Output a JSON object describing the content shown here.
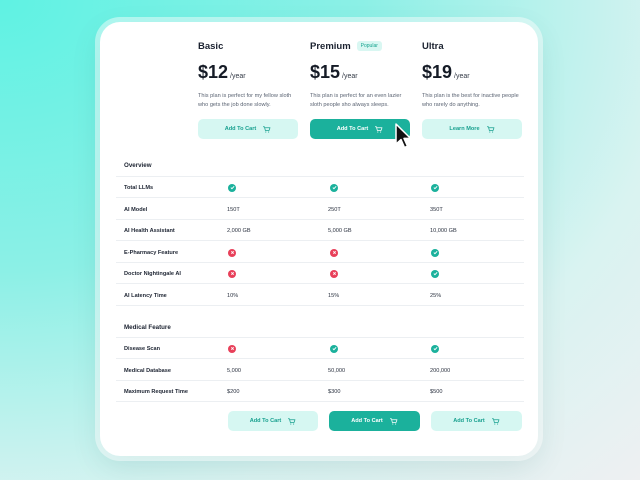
{
  "plans": [
    {
      "name": "Basic",
      "price": "$12",
      "period": "/year",
      "description": "This plan is perfect for my fellow sloth who gets the job done slowly.",
      "button": "Add To Cart",
      "button_style": "light"
    },
    {
      "name": "Premium",
      "badge": "Popular",
      "price": "$15",
      "period": "/year",
      "description": "This plan is perfect for an even lazier sloth people sho always sleeps.",
      "button": "Add To Cart",
      "button_style": "solid"
    },
    {
      "name": "Ultra",
      "price": "$19",
      "period": "/year",
      "description": "This plan is the best for inactive people who rarely do anything.",
      "button": "Learn More",
      "button_style": "light"
    }
  ],
  "sections": [
    {
      "title": "Overview",
      "rows": [
        {
          "label": "Total LLMs",
          "values": [
            "check",
            "check",
            "check"
          ]
        },
        {
          "label": "AI Model",
          "values": [
            "150T",
            "250T",
            "350T"
          ]
        },
        {
          "label": "AI Health Assistant",
          "values": [
            "2,000 GB",
            "5,000 GB",
            "10,000 GB"
          ]
        },
        {
          "label": "E-Pharmacy Feature",
          "values": [
            "cross",
            "cross",
            "check"
          ]
        },
        {
          "label": "Doctor Nightingale AI",
          "values": [
            "cross",
            "cross",
            "check"
          ]
        },
        {
          "label": "AI Latency Time",
          "values": [
            "10%",
            "15%",
            "25%"
          ]
        }
      ]
    },
    {
      "title": "Medical Feature",
      "rows": [
        {
          "label": "Disease Scan",
          "values": [
            "cross",
            "check",
            "check"
          ]
        },
        {
          "label": "Medical Database",
          "values": [
            "5,000",
            "50,000",
            "200,000"
          ]
        },
        {
          "label": "Maximum Request Time",
          "values": [
            "$200",
            "$300",
            "$500"
          ]
        }
      ]
    }
  ],
  "footer_buttons": [
    {
      "label": "Add To Cart",
      "style": "light"
    },
    {
      "label": "Add To Cart",
      "style": "solid"
    },
    {
      "label": "Add To Cart",
      "style": "light"
    }
  ],
  "icons": {
    "button_icon": "cart-icon",
    "included_icon": "check-circle-icon",
    "excluded_icon": "cross-circle-icon",
    "pointer": "cursor-arrow-icon"
  },
  "colors": {
    "accent": "#1bb19c",
    "accent_light": "#d6f7f2",
    "negative": "#e8405a",
    "text": "#1b2230"
  }
}
